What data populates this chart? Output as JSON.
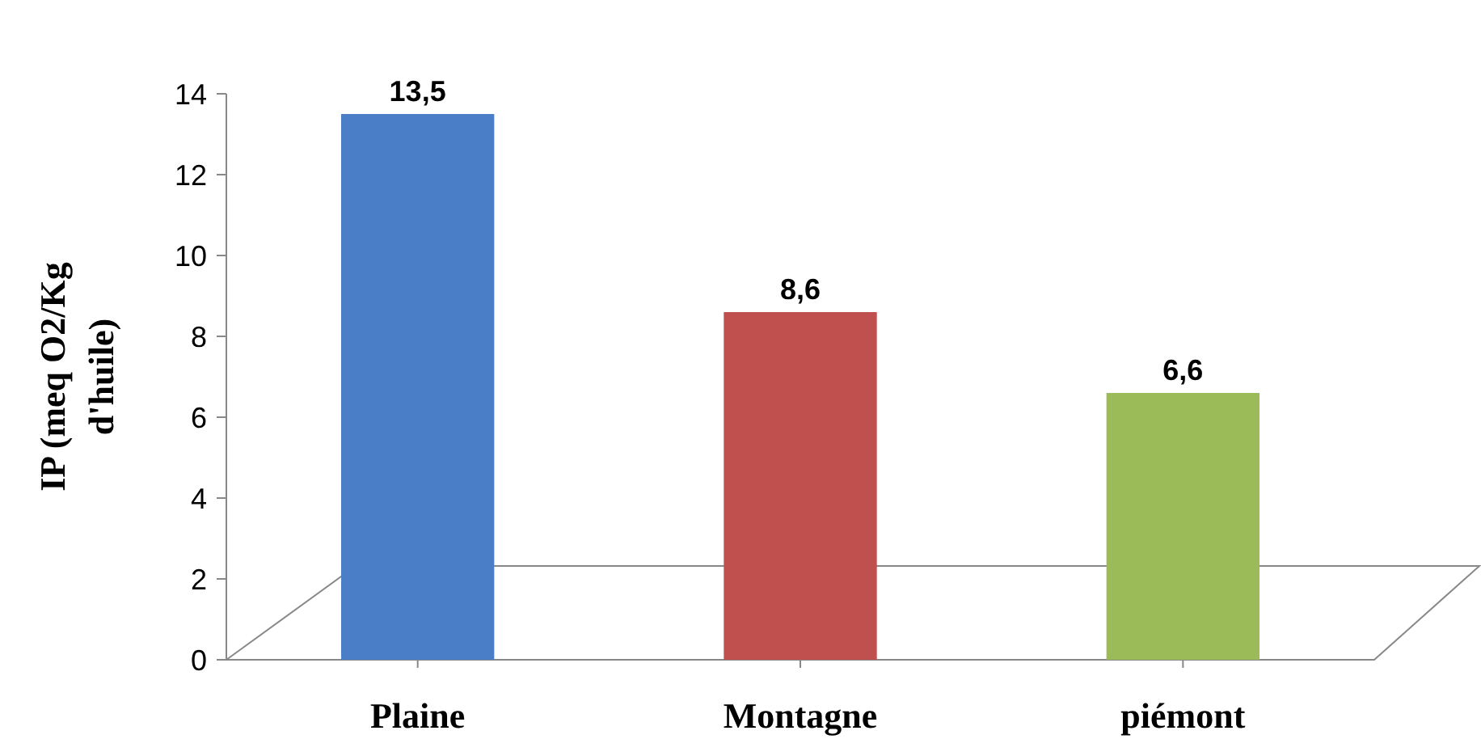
{
  "chart_data": {
    "type": "bar",
    "ylabel": "IP (meq O2/Kg d'huile)",
    "categories": [
      "Plaine",
      "Montagne",
      "piémont"
    ],
    "values": [
      13.5,
      8.6,
      6.6
    ],
    "value_labels": [
      "13,5",
      "8,6",
      "6,6"
    ],
    "colors": [
      "#4a7fc8",
      "#c0504d",
      "#9bbb59"
    ],
    "ylim": [
      0,
      14
    ],
    "yticks": [
      0,
      2,
      4,
      6,
      8,
      10,
      12,
      14
    ],
    "grid": false
  }
}
